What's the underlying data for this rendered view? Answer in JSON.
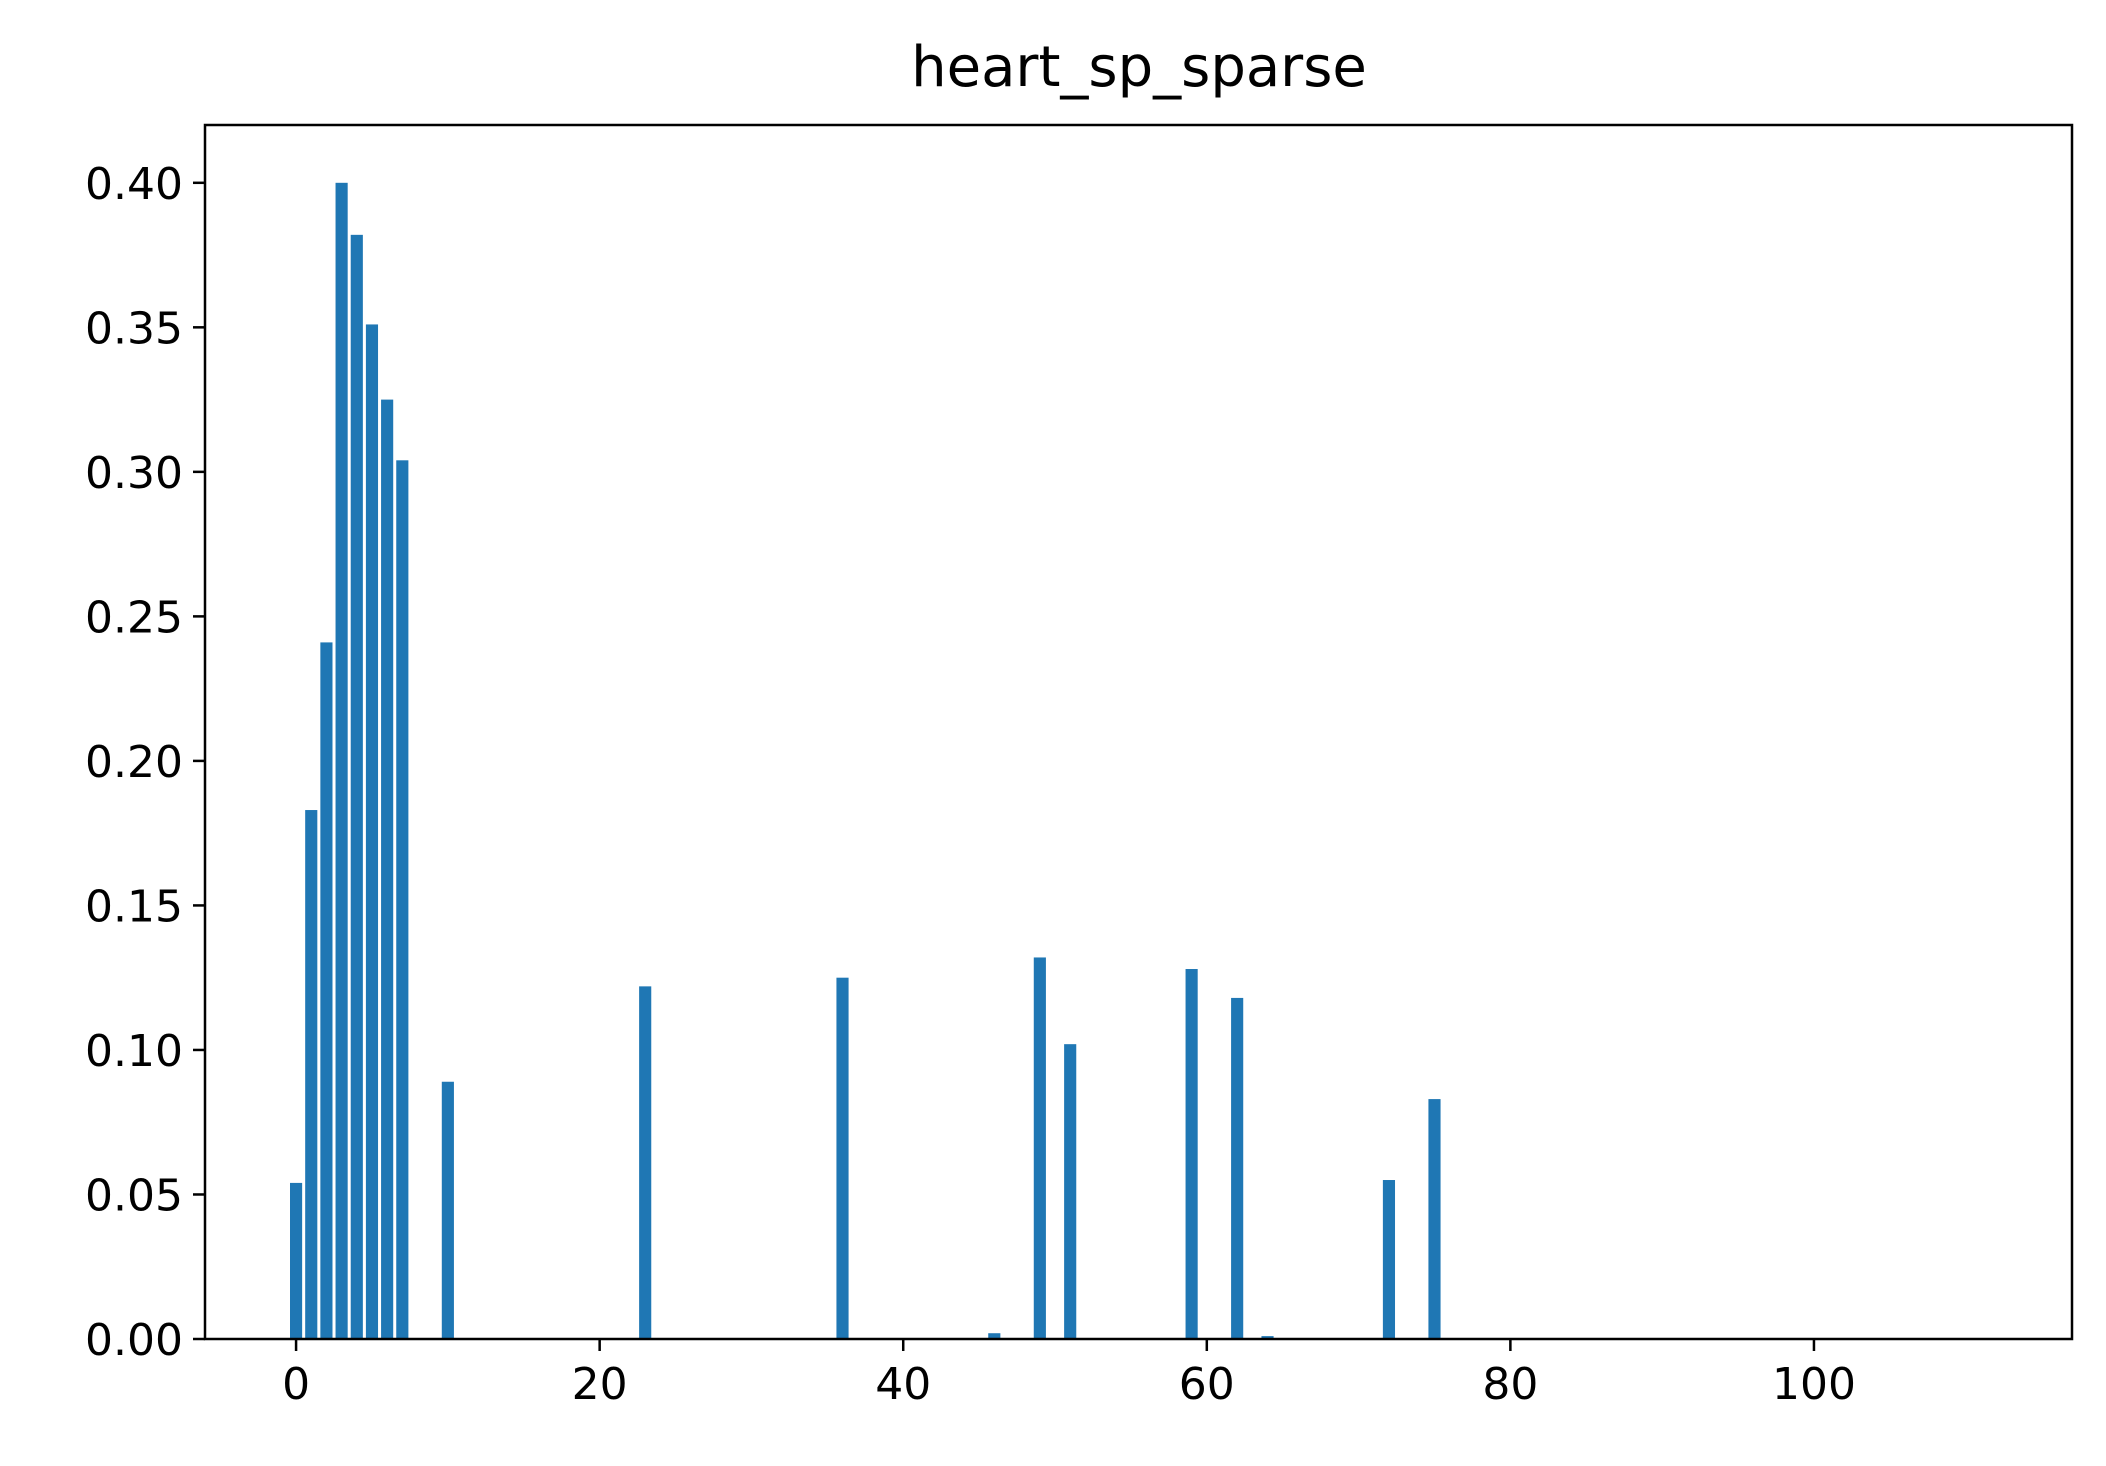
{
  "chart_data": {
    "type": "bar",
    "title": "heart_sp_sparse",
    "xlabel": "",
    "ylabel": "",
    "xlim": [
      -6,
      117
    ],
    "ylim": [
      0,
      0.42
    ],
    "x_ticks": [
      0,
      20,
      40,
      60,
      80,
      100
    ],
    "x_tick_labels": [
      "0",
      "20",
      "40",
      "60",
      "80",
      "100"
    ],
    "y_ticks": [
      0,
      0.05,
      0.1,
      0.15,
      0.2,
      0.25,
      0.3,
      0.35,
      0.4
    ],
    "y_tick_labels": [
      "0.00",
      "0.05",
      "0.10",
      "0.15",
      "0.20",
      "0.25",
      "0.30",
      "0.35",
      "0.40"
    ],
    "grid": false,
    "bar_width": 0.8,
    "color": "#1f77b4",
    "x": [
      0,
      1,
      2,
      3,
      4,
      5,
      6,
      7,
      10,
      23,
      36,
      46,
      49,
      51,
      59,
      62,
      64,
      72,
      75
    ],
    "values": [
      0.054,
      0.183,
      0.241,
      0.4,
      0.382,
      0.351,
      0.325,
      0.304,
      0.089,
      0.122,
      0.125,
      0.002,
      0.132,
      0.102,
      0.128,
      0.118,
      0.001,
      0.055,
      0.083
    ]
  }
}
